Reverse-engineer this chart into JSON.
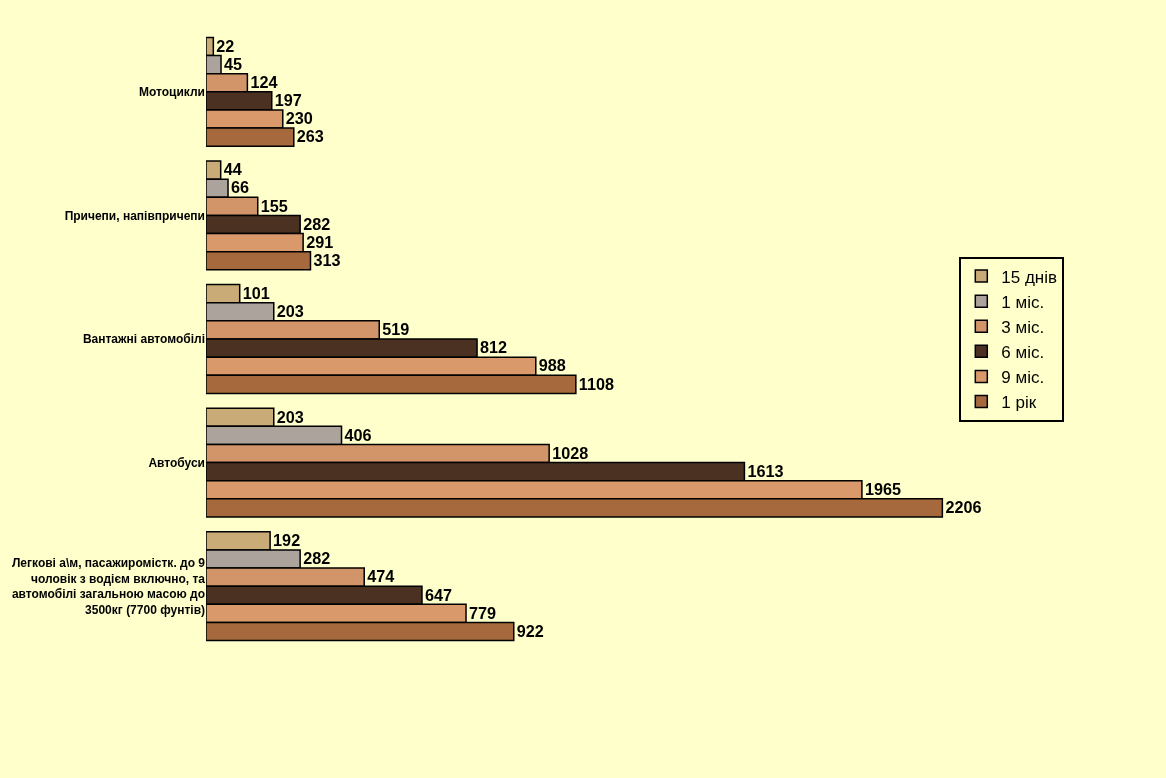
{
  "chart_data": {
    "type": "bar",
    "orientation": "horizontal",
    "data_labels": true,
    "legend": "right",
    "grid": false,
    "categories": [
      "Мотоцикли",
      "Причепи, напівпричепи",
      "Вантажні автомобілі",
      "Автобуси",
      "Легкові а\\м, пасажиромістк. до 9 чоловік з водієм включно, та автомобілі загальною масою до 3500кг (7700 фунтів)"
    ],
    "series": [
      {
        "name": "15 днів",
        "color": "#c9ab78",
        "values": [
          22,
          44,
          101,
          203,
          192
        ]
      },
      {
        "name": "1 міс.",
        "color": "#aca39c",
        "values": [
          45,
          66,
          203,
          406,
          282
        ]
      },
      {
        "name": "3 міс.",
        "color": "#d2956a",
        "values": [
          124,
          155,
          519,
          1028,
          474
        ]
      },
      {
        "name": "6 міс.",
        "color": "#4b3122",
        "values": [
          197,
          282,
          812,
          1613,
          647
        ]
      },
      {
        "name": "9 міс.",
        "color": "#d9996b",
        "values": [
          230,
          291,
          988,
          1965,
          779
        ]
      },
      {
        "name": "1 рік",
        "color": "#a5693d",
        "values": [
          263,
          313,
          1108,
          2206,
          922
        ]
      }
    ]
  }
}
